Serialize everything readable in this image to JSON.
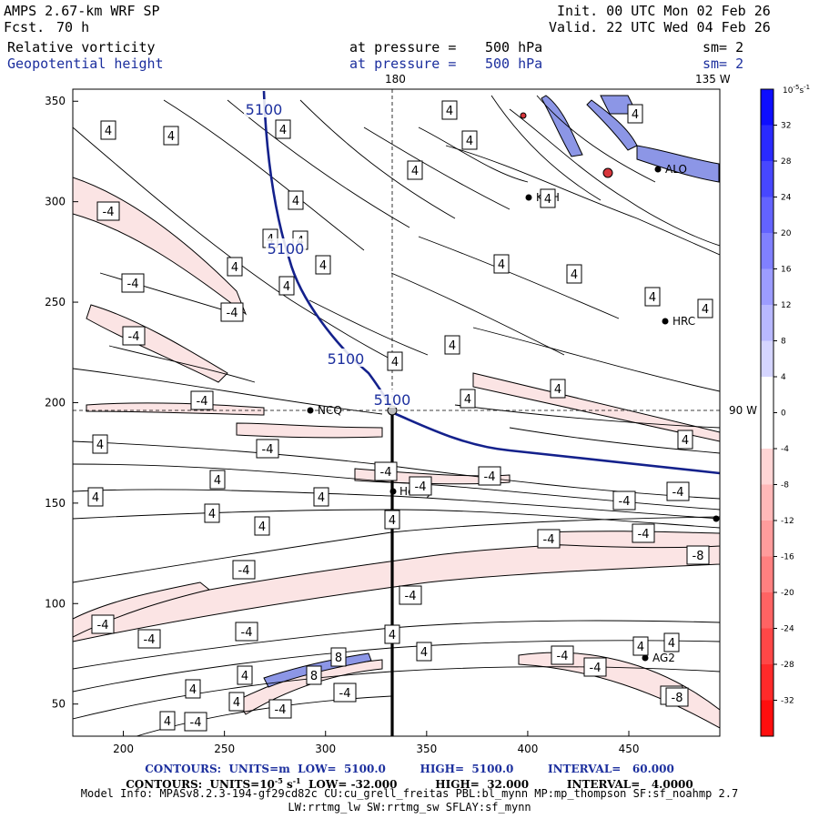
{
  "header": {
    "model": "AMPS 2.67-km WRF SP",
    "fcst_label": "Fcst.",
    "fcst_value": "70 h",
    "init": "Init. 00 UTC Mon 02 Feb 26",
    "valid": "Valid. 22 UTC Wed 04 Feb 26",
    "field1_name": "Relative vorticity",
    "field1_level_label": "at pressure =",
    "field1_level": "500 hPa",
    "field1_sm": "sm= 2",
    "field2_name": "Geopotential height",
    "field2_level_label": "at pressure =",
    "field2_level": "500 hPa",
    "field2_sm": "sm= 2"
  },
  "map_labels": {
    "lon_180": "180",
    "lon_135w": "135 W",
    "lon_90w": "90 W",
    "stations": [
      "NCQ",
      "Henry",
      "HRC",
      "KNH",
      "AG2",
      "ALO"
    ]
  },
  "colors": {
    "positive_max": "#0000ff",
    "negative_max": "#ff0000",
    "height_contour": "#14218c",
    "frame": "#000000"
  },
  "chart_data": {
    "type": "contour",
    "title": "Relative vorticity and Geopotential height at 500 hPa",
    "x_ticks": [
      200,
      250,
      300,
      350,
      400,
      450
    ],
    "y_ticks": [
      50,
      100,
      150,
      200,
      250,
      300,
      350
    ],
    "xlim": [
      175,
      495
    ],
    "ylim": [
      34,
      356
    ],
    "colorbar": {
      "unit_label": "10",
      "unit_exp": "-5",
      "unit_tail": "s",
      "unit_tail_exp": "-1",
      "levels": [
        32,
        28,
        24,
        20,
        16,
        12,
        8,
        4,
        0,
        -4,
        -8,
        -12,
        -16,
        -20,
        -24,
        -28,
        -32
      ],
      "range": [
        -36,
        36
      ]
    },
    "height_contour_labels": [
      "5100",
      "5100",
      "5100",
      "5100"
    ],
    "vorticity_contour_labels": [
      "4",
      "4",
      "4",
      "4",
      "4",
      "4",
      "4",
      "4",
      "4",
      "4",
      "4",
      "4",
      "4",
      "4",
      "4",
      "4",
      "4",
      "4",
      "4",
      "4",
      "4",
      "4",
      "4",
      "4",
      "4",
      "4",
      "4",
      "4",
      "4",
      "4",
      "4",
      "4",
      "4",
      "4",
      "4",
      "4",
      "4",
      "4",
      "-4",
      "-4",
      "-4",
      "-4",
      "-4",
      "-4",
      "-4",
      "-4",
      "-4",
      "-4",
      "-4",
      "-4",
      "-4",
      "-4",
      "-4",
      "-4",
      "-4",
      "-4",
      "-4",
      "-4",
      "-4",
      "-4",
      "-4",
      "-4",
      "8",
      "8",
      "-8",
      "-8"
    ],
    "cross_section_x": 333,
    "height_series": [
      [
        270,
        356
      ],
      [
        275,
        310
      ],
      [
        280,
        280
      ],
      [
        290,
        260
      ],
      [
        310,
        235
      ],
      [
        330,
        210
      ],
      [
        333,
        195
      ],
      [
        360,
        185
      ],
      [
        380,
        178
      ],
      [
        400,
        172
      ],
      [
        430,
        170
      ],
      [
        460,
        168
      ],
      [
        490,
        165
      ]
    ]
  },
  "footer": {
    "line1_a": "CONTOURS:  UNITS=m  LOW=  5100.0         HIGH=  5100.0         INTERVAL=   60.000",
    "line2_a": "CONTOURS:  UNITS=10",
    "line2_exp": "-5",
    "line2_b": " s",
    "line2_exp2": "-1",
    "line2_c": "  LOW= -32.000          HIGH=  32.000          INTERVAL=   4.0000",
    "line3": "Model Info: MPASv8.2.3-194-gf29cd82c CU:cu_grell_freitas PBL:bl_mynn MP:mp_thompson SF:sf_noahmp 2.7",
    "line4": "LW:rrtmg_lw SW:rrtmg_sw SFLAY:sf_mynn"
  }
}
